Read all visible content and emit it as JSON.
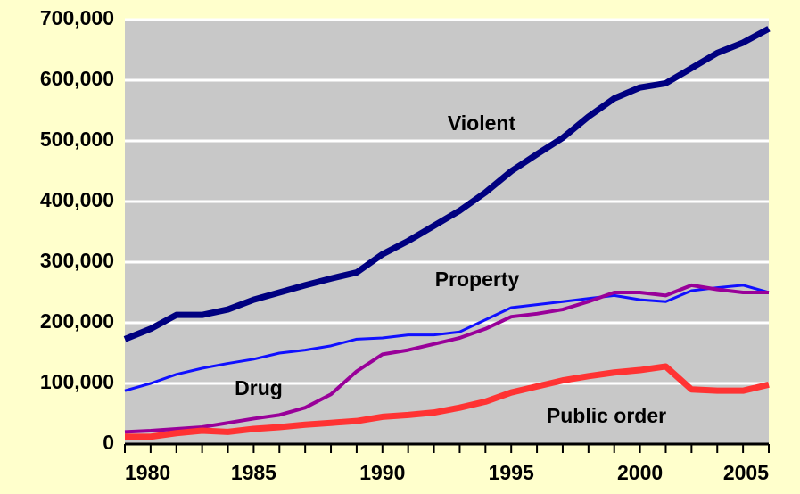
{
  "chart_data": {
    "type": "line",
    "x": [
      1980,
      1981,
      1982,
      1983,
      1984,
      1985,
      1986,
      1987,
      1988,
      1989,
      1990,
      1991,
      1992,
      1993,
      1994,
      1995,
      1996,
      1997,
      1998,
      1999,
      2000,
      2001,
      2002,
      2003,
      2004,
      2005
    ],
    "series": [
      {
        "name": "Violent",
        "color": "#000080",
        "values": [
          173000,
          190000,
          213000,
          213000,
          222000,
          238000,
          250000,
          262000,
          273000,
          283000,
          313000,
          335000,
          360000,
          385000,
          415000,
          450000,
          478000,
          505000,
          540000,
          570000,
          588000,
          595000,
          620000,
          645000,
          662000,
          685000
        ]
      },
      {
        "name": "Property",
        "color": "#1010ff",
        "values": [
          88000,
          100000,
          115000,
          125000,
          133000,
          140000,
          150000,
          155000,
          162000,
          173000,
          175000,
          180000,
          180000,
          185000,
          205000,
          225000,
          230000,
          235000,
          240000,
          245000,
          238000,
          235000,
          253000,
          258000,
          262000,
          250000
        ]
      },
      {
        "name": "Drug",
        "color": "#990099",
        "values": [
          20000,
          22000,
          25000,
          28000,
          35000,
          42000,
          48000,
          60000,
          82000,
          120000,
          148000,
          155000,
          165000,
          175000,
          190000,
          210000,
          215000,
          222000,
          235000,
          250000,
          250000,
          245000,
          262000,
          255000,
          250000,
          250000
        ]
      },
      {
        "name": "Public order",
        "color": "#ff3333",
        "values": [
          12000,
          12000,
          18000,
          22000,
          20000,
          25000,
          28000,
          32000,
          35000,
          38000,
          45000,
          48000,
          52000,
          60000,
          70000,
          85000,
          95000,
          105000,
          112000,
          118000,
          122000,
          128000,
          90000,
          88000,
          88000,
          98000
        ]
      }
    ],
    "xlim": [
      1980,
      2005
    ],
    "xticks": [
      1980,
      1985,
      1990,
      1995,
      2000,
      2005
    ],
    "ylim": [
      0,
      700000
    ],
    "yticks": [
      0,
      {
        "value": 100000,
        "label": "100,000"
      },
      {
        "value": 200000,
        "label": "200,000"
      },
      {
        "value": 300000,
        "label": "300,000"
      },
      {
        "value": 400000,
        "label": "400,000"
      },
      {
        "value": 500000,
        "label": "500,000"
      },
      {
        "value": 600000,
        "label": "600,000"
      },
      {
        "value": 700000,
        "label": "700,000"
      }
    ],
    "grid": true
  }
}
